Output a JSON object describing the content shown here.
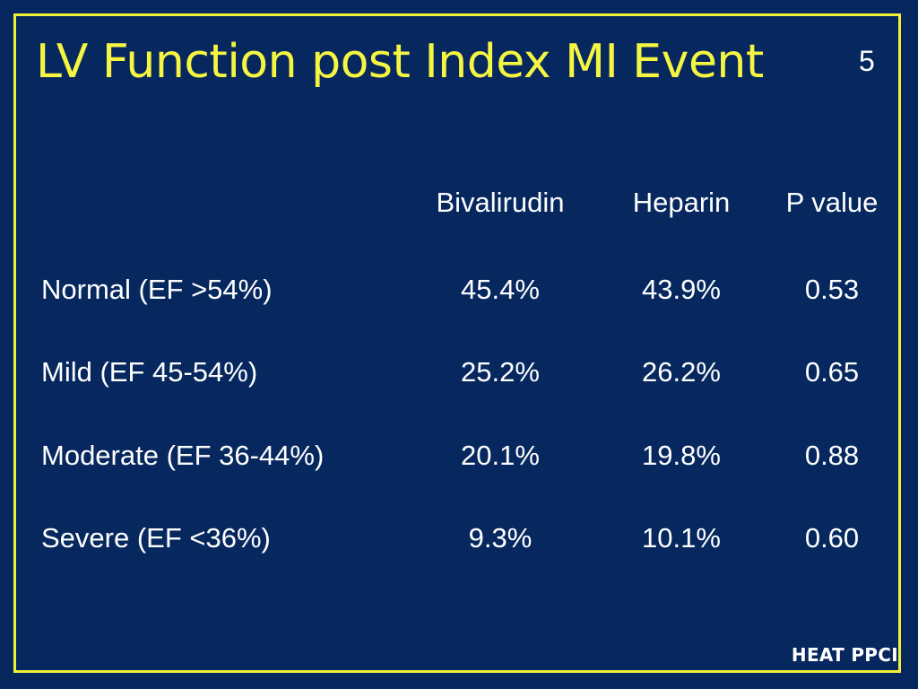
{
  "slide": {
    "title": "LV Function post Index MI Event",
    "number": "5",
    "footer": "HEAT PPCI"
  },
  "table": {
    "headers": [
      "Bivalirudin",
      "Heparin",
      "P value"
    ],
    "rows": [
      {
        "label": "Normal (EF  >54%)",
        "bivalirudin": "45.4%",
        "heparin": "43.9%",
        "p_value": "0.53"
      },
      {
        "label": "Mild (EF  45-54%)",
        "bivalirudin": "25.2%",
        "heparin": "26.2%",
        "p_value": "0.65"
      },
      {
        "label": "Moderate (EF  36-44%)",
        "bivalirudin": "20.1%",
        "heparin": "19.8%",
        "p_value": "0.88"
      },
      {
        "label": "Severe (EF  <36%)",
        "bivalirudin": "9.3%",
        "heparin": "10.1%",
        "p_value": "0.60"
      }
    ]
  },
  "colors": {
    "background": "#06285f",
    "title": "#f5f542",
    "border": "#f0f03a",
    "text": "#ffffff"
  }
}
